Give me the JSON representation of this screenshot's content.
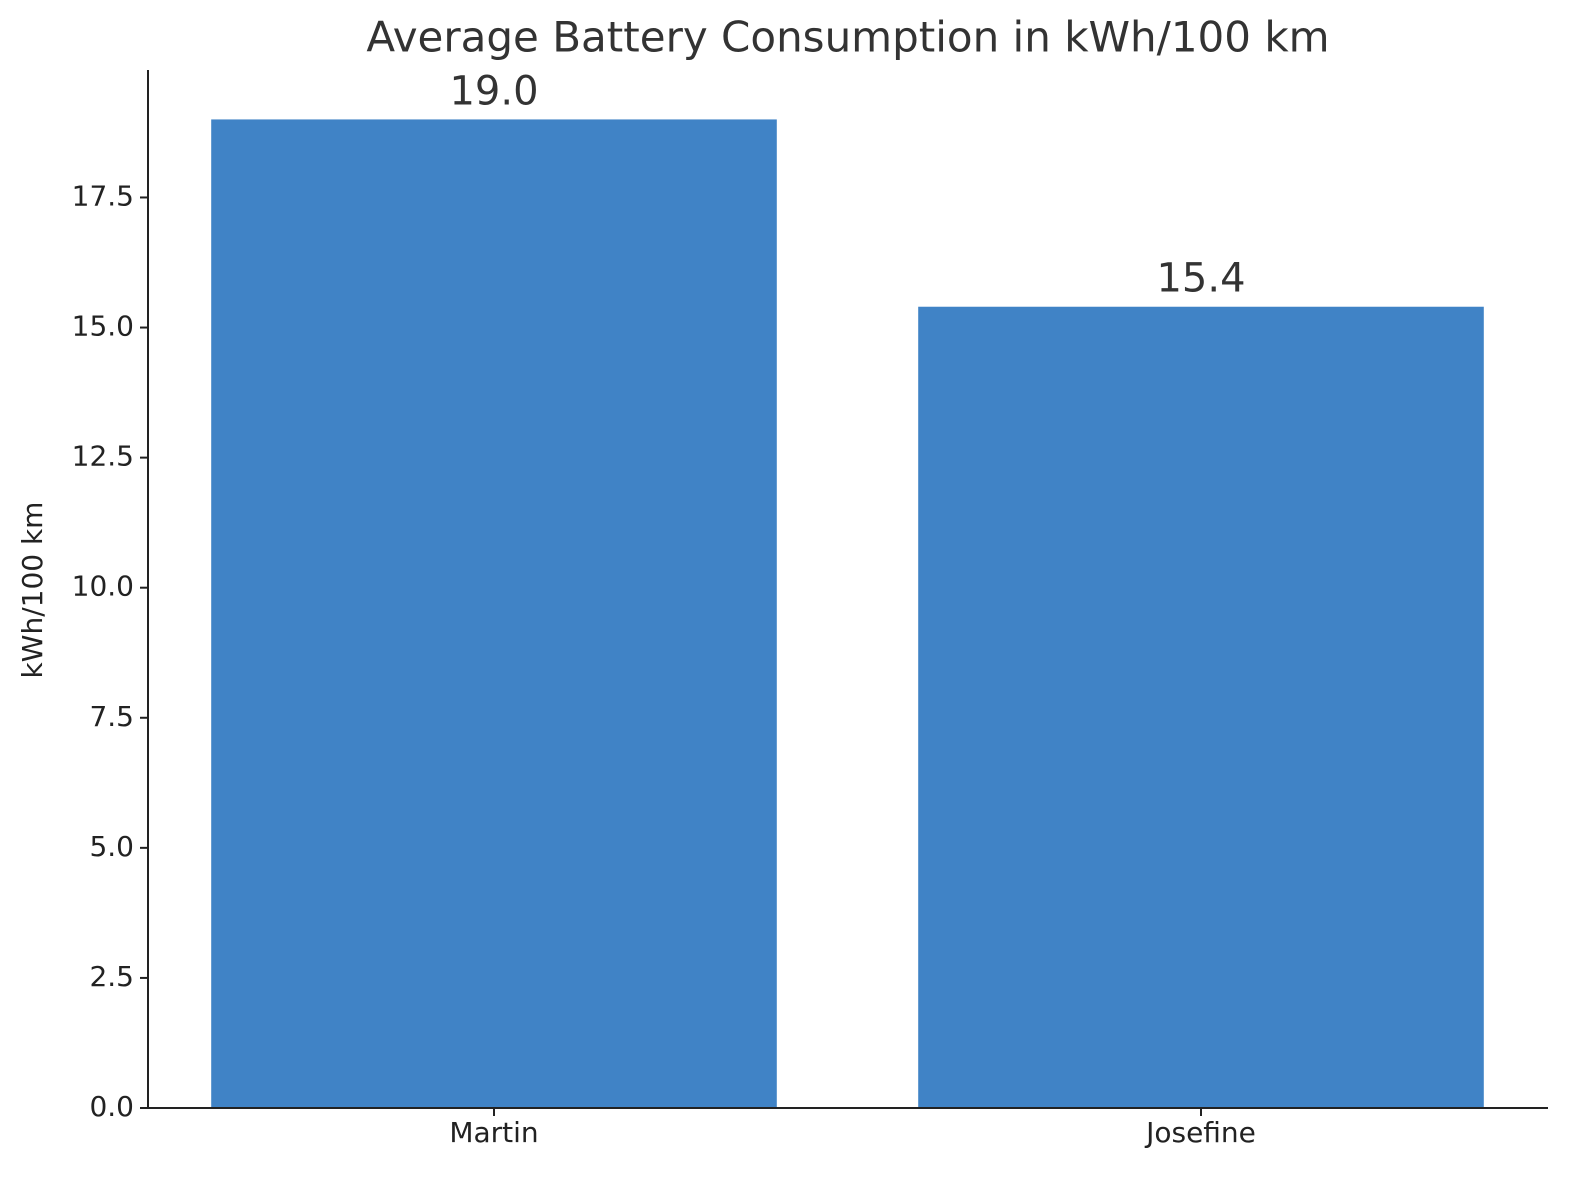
{
  "chart_data": {
    "type": "bar",
    "title": "Average Battery Consumption in kWh/100 km",
    "y_label": "kWh/100 km",
    "categories": [
      "Martin",
      "Josefine"
    ],
    "values": [
      19,
      15.4
    ],
    "value_labels": [
      "19.0",
      "15.4"
    ],
    "color": "#4083c6",
    "ylim": [
      0,
      19.95
    ],
    "yticks": [
      {
        "value": 0,
        "label": "0.0"
      },
      2.5,
      {
        "value": 5,
        "label": "5.0"
      },
      7.5,
      {
        "value": 10,
        "label": "10.0"
      },
      12.5,
      {
        "value": 15,
        "label": "15.0"
      },
      17.5
    ],
    "grid": false
  }
}
